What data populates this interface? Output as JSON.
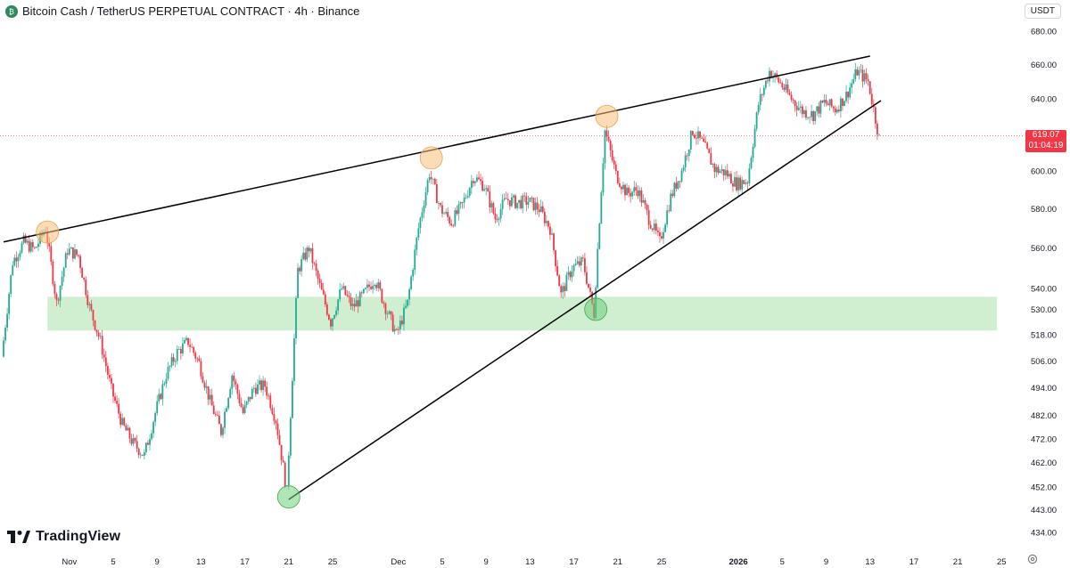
{
  "header": {
    "title": "Bitcoin Cash / TetherUS PERPETUAL CONTRACT · 4h · Binance",
    "coin_icon": "bitcoin-cash-icon"
  },
  "currency_button": "USDT",
  "current_price": {
    "value": "619.07",
    "countdown": "01:04:19"
  },
  "brand": {
    "logo_text": "TradingView",
    "logo_icon": "tradingview-logo-icon"
  },
  "colors": {
    "up": "#22ab94",
    "down": "#f23645",
    "zone": "#c8ebc8",
    "highlight_orange": "#f7c07a",
    "highlight_green": "#6fcf7a"
  },
  "chart_data": {
    "type": "candlestick",
    "interval": "4h",
    "ylim": [
      434,
      680
    ],
    "y_ticks": [
      "680.00",
      "660.00",
      "640.00",
      "620.00",
      "600.00",
      "580.00",
      "560.00",
      "540.00",
      "530.00",
      "518.00",
      "506.00",
      "494.00",
      "482.00",
      "472.00",
      "462.00",
      "452.00",
      "443.00",
      "434.00"
    ],
    "x_ticks": [
      "Nov",
      "5",
      "9",
      "13",
      "17",
      "21",
      "25",
      "Dec",
      "5",
      "9",
      "13",
      "17",
      "21",
      "25",
      "2026",
      "5",
      "9",
      "13",
      "17",
      "21",
      "25"
    ],
    "x_range": [
      "2025-10-26",
      "2026-01-28"
    ],
    "scale": "log",
    "trend_lines": [
      {
        "name": "upper-resistance",
        "from": [
          "2025-10-26",
          563
        ],
        "to": [
          "2026-01-13",
          665
        ]
      },
      {
        "name": "lower-support",
        "from": [
          "2025-11-21",
          447
        ],
        "to": [
          "2026-01-14",
          639
        ]
      }
    ],
    "support_zone": {
      "from": "2025-10-30",
      "to": "2026-01-28",
      "low": 520,
      "high": 536
    },
    "highlights": [
      {
        "date": "2025-10-30",
        "price": 568,
        "color": "orange"
      },
      {
        "date": "2025-12-04",
        "price": 607,
        "color": "orange"
      },
      {
        "date": "2025-12-20",
        "price": 630,
        "color": "orange"
      },
      {
        "date": "2025-11-21",
        "price": 448,
        "color": "green"
      },
      {
        "date": "2025-12-19",
        "price": 530,
        "color": "green"
      }
    ],
    "anchors": [
      [
        "2025-10-26",
        508
      ],
      [
        "2025-10-27",
        553
      ],
      [
        "2025-10-28",
        563
      ],
      [
        "2025-10-29",
        559
      ],
      [
        "2025-10-30",
        570
      ],
      [
        "2025-10-31",
        533
      ],
      [
        "2025-11-01",
        559
      ],
      [
        "2025-11-02",
        556
      ],
      [
        "2025-11-03",
        531
      ],
      [
        "2025-11-04",
        515
      ],
      [
        "2025-11-05",
        493
      ],
      [
        "2025-11-06",
        478
      ],
      [
        "2025-11-07",
        470
      ],
      [
        "2025-11-08",
        465
      ],
      [
        "2025-11-09",
        483
      ],
      [
        "2025-11-10",
        500
      ],
      [
        "2025-11-11",
        510
      ],
      [
        "2025-11-12",
        515
      ],
      [
        "2025-11-13",
        505
      ],
      [
        "2025-11-14",
        488
      ],
      [
        "2025-11-15",
        475
      ],
      [
        "2025-11-16",
        500
      ],
      [
        "2025-11-17",
        483
      ],
      [
        "2025-11-18",
        494
      ],
      [
        "2025-11-19",
        495
      ],
      [
        "2025-11-20",
        480
      ],
      [
        "2025-11-21",
        450
      ],
      [
        "2025-11-22",
        549
      ],
      [
        "2025-11-23",
        560
      ],
      [
        "2025-11-24",
        541
      ],
      [
        "2025-11-25",
        524
      ],
      [
        "2025-11-26",
        540
      ],
      [
        "2025-11-27",
        531
      ],
      [
        "2025-11-28",
        537
      ],
      [
        "2025-11-29",
        545
      ],
      [
        "2025-11-30",
        531
      ],
      [
        "2025-12-01",
        518
      ],
      [
        "2025-12-02",
        533
      ],
      [
        "2025-12-03",
        570
      ],
      [
        "2025-12-04",
        599
      ],
      [
        "2025-12-05",
        580
      ],
      [
        "2025-12-06",
        573
      ],
      [
        "2025-12-07",
        582
      ],
      [
        "2025-12-08",
        597
      ],
      [
        "2025-12-09",
        592
      ],
      [
        "2025-12-10",
        575
      ],
      [
        "2025-12-11",
        585
      ],
      [
        "2025-12-12",
        583
      ],
      [
        "2025-12-13",
        584
      ],
      [
        "2025-12-14",
        580
      ],
      [
        "2025-12-15",
        570
      ],
      [
        "2025-12-16",
        537
      ],
      [
        "2025-12-17",
        550
      ],
      [
        "2025-12-18",
        553
      ],
      [
        "2025-12-19",
        528
      ],
      [
        "2025-12-20",
        622
      ],
      [
        "2025-12-21",
        598
      ],
      [
        "2025-12-22",
        588
      ],
      [
        "2025-12-23",
        590
      ],
      [
        "2025-12-24",
        575
      ],
      [
        "2025-12-25",
        563
      ],
      [
        "2025-12-26",
        586
      ],
      [
        "2025-12-27",
        600
      ],
      [
        "2025-12-28",
        622
      ],
      [
        "2025-12-29",
        614
      ],
      [
        "2025-12-30",
        601
      ],
      [
        "2025-12-31",
        599
      ],
      [
        "2026-01-01",
        593
      ],
      [
        "2026-01-02",
        595
      ],
      [
        "2026-01-03",
        637
      ],
      [
        "2026-01-04",
        656
      ],
      [
        "2026-01-05",
        649
      ],
      [
        "2026-01-06",
        640
      ],
      [
        "2026-01-07",
        633
      ],
      [
        "2026-01-08",
        631
      ],
      [
        "2026-01-09",
        638
      ],
      [
        "2026-01-10",
        634
      ],
      [
        "2026-01-11",
        642
      ],
      [
        "2026-01-12",
        656
      ],
      [
        "2026-01-13",
        650
      ],
      [
        "2026-01-14",
        618
      ]
    ]
  }
}
